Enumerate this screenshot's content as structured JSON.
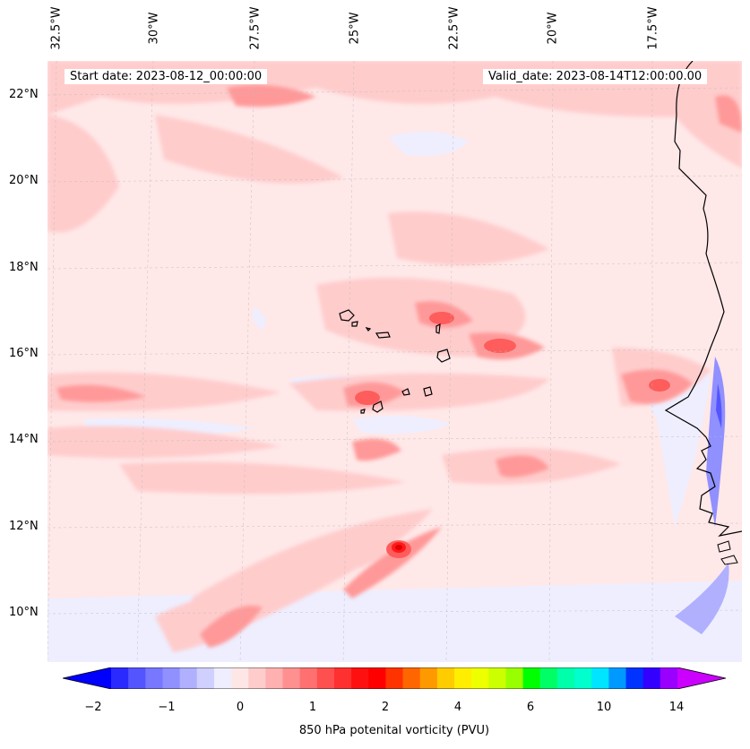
{
  "map": {
    "start_date": "Start date: 2023-08-12_00:00:00",
    "valid_date": "Valid_date: 2023-08-14T12:00:00.00",
    "lon_labels": [
      "32.5°W",
      "30°W",
      "27.5°W",
      "25°W",
      "22.5°W",
      "20°W",
      "17.5°W"
    ],
    "lat_labels": [
      "22°N",
      "20°N",
      "18°N",
      "16°N",
      "14°N",
      "12°N",
      "10°N"
    ],
    "features": [
      "Cape Verde islands",
      "West African coastline"
    ],
    "colors": {
      "neg_strong": "#0000ff",
      "neg_weak": "#eeeeff",
      "zero": "#ffe8e8",
      "pos_weak": "#ffcccc",
      "pos_mid": "#ff8c8c",
      "pos_strong": "#ff3030",
      "peak": "#ff0000"
    }
  },
  "colorbar": {
    "title": "850 hPa potenital vorticity (PVU)",
    "tick_labels": [
      "−2",
      "−1",
      "0",
      "1",
      "2",
      "4",
      "6",
      "10",
      "14"
    ],
    "colors": [
      "#0000ff",
      "#2a2aff",
      "#5555ff",
      "#7777ff",
      "#9090ff",
      "#b0b0ff",
      "#d0d0ff",
      "#eeeeff",
      "#ffe6e6",
      "#ffcccc",
      "#ffb0b0",
      "#ff9090",
      "#ff7070",
      "#ff5050",
      "#ff3030",
      "#ff1010",
      "#ff0000",
      "#ff3300",
      "#ff6600",
      "#ff9900",
      "#ffcc00",
      "#ffee00",
      "#eeff00",
      "#ccff00",
      "#99ff00",
      "#00ff00",
      "#00ff66",
      "#00ffaa",
      "#00ffcc",
      "#00e5ff",
      "#0099ff",
      "#0033ff",
      "#3300ff",
      "#9900ff",
      "#cc00ff"
    ]
  }
}
